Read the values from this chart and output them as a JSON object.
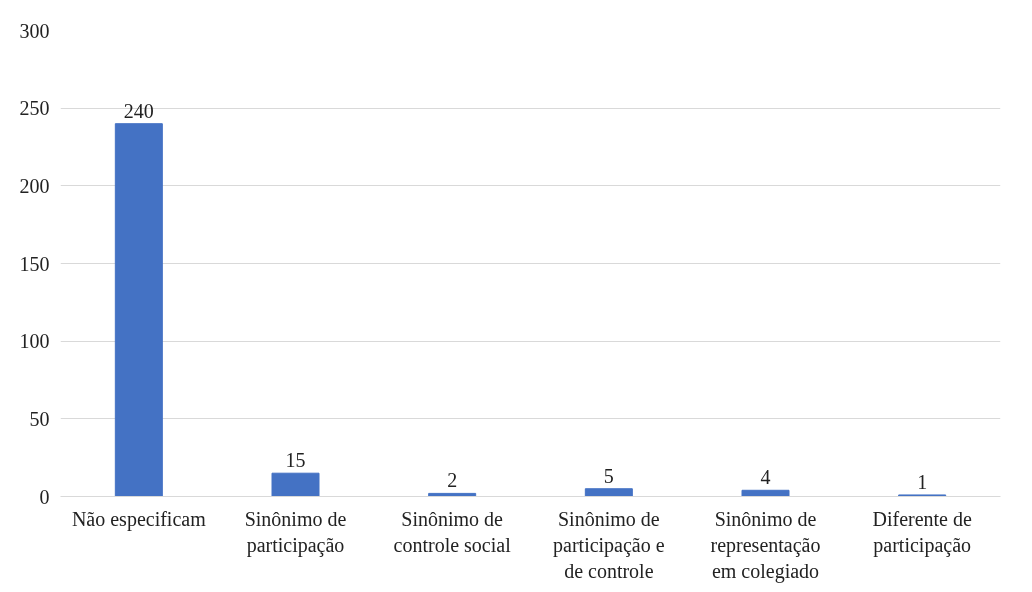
{
  "chart_data": {
    "type": "bar",
    "categories": [
      "Não especificam",
      "Sinônimo de participação",
      "Sinônimo de controle social",
      "Sinônimo de participação e de controle",
      "Sinônimo de representação em colegiado",
      "Diferente de participação"
    ],
    "values": [
      240,
      15,
      2,
      5,
      4,
      1
    ],
    "color": "#4472c4",
    "ylim": [
      0,
      300
    ],
    "yticks": [
      0,
      50,
      100,
      150,
      200,
      250,
      300
    ],
    "grid": "y",
    "data_labels": true
  }
}
